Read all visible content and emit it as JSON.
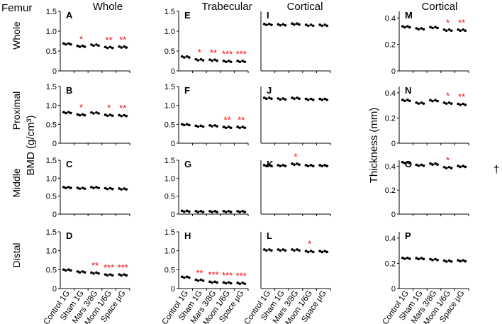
{
  "figure": {
    "bone_label": "Femur",
    "column_titles": [
      "Whole",
      "Trabecular",
      "Cortical",
      "Cortical"
    ],
    "row_labels": [
      "Whole",
      "Proximal",
      "Middle",
      "Distal"
    ],
    "y_axis_title_bmd": "BMD (g/cm³)",
    "y_axis_title_thickness": "Thickness (mm)",
    "dagger": "†",
    "colors": {
      "points": "#000000",
      "significance": "#ff0000",
      "axis": "#000000"
    }
  },
  "chart_data": {
    "type": "scatter",
    "categories": [
      "Control 1G",
      "Sham 1G",
      "Mars 3/8G",
      "Moon 1/6G",
      "Space µG"
    ],
    "bmd_axis": {
      "ylim": [
        0,
        1.5
      ],
      "ticks": [
        "0",
        "0.5",
        "1.0",
        "1.5"
      ],
      "tick_values": [
        0,
        0.5,
        1.0,
        1.5
      ]
    },
    "thickness_axis": {
      "ylim": [
        0,
        0.45
      ],
      "ticks": [
        "0",
        "0.2",
        "0.4"
      ],
      "tick_values": [
        0,
        0.2,
        0.4
      ]
    },
    "panels": [
      {
        "letter": "A",
        "group": "bmd",
        "means": [
          0.68,
          0.62,
          0.65,
          0.59,
          0.6
        ],
        "sig": [
          "",
          "*",
          "",
          "**",
          "**"
        ]
      },
      {
        "letter": "E",
        "group": "bmd",
        "means": [
          0.35,
          0.28,
          0.27,
          0.24,
          0.24
        ],
        "sig": [
          "",
          "*",
          "**",
          "***",
          "***"
        ]
      },
      {
        "letter": "I",
        "group": "bmd",
        "means": [
          1.17,
          1.16,
          1.18,
          1.15,
          1.15
        ],
        "sig": [
          "",
          "",
          "",
          "",
          ""
        ]
      },
      {
        "letter": "M",
        "group": "thk",
        "means": [
          0.333,
          0.318,
          0.328,
          0.308,
          0.308
        ],
        "sig": [
          "",
          "",
          "",
          "*",
          "**"
        ]
      },
      {
        "letter": "B",
        "group": "bmd",
        "means": [
          0.81,
          0.75,
          0.8,
          0.74,
          0.73
        ],
        "sig": [
          "",
          "*",
          "",
          "*",
          "**"
        ]
      },
      {
        "letter": "F",
        "group": "bmd",
        "means": [
          0.49,
          0.45,
          0.46,
          0.42,
          0.42
        ],
        "sig": [
          "",
          "",
          "",
          "**",
          "**"
        ]
      },
      {
        "letter": "J",
        "group": "bmd",
        "means": [
          1.19,
          1.17,
          1.19,
          1.16,
          1.16
        ],
        "sig": [
          "",
          "",
          "",
          "",
          ""
        ]
      },
      {
        "letter": "N",
        "group": "thk",
        "means": [
          0.34,
          0.318,
          0.338,
          0.318,
          0.308
        ],
        "sig": [
          "",
          "",
          "",
          "*",
          "**"
        ]
      },
      {
        "letter": "C",
        "group": "bmd",
        "means": [
          0.74,
          0.72,
          0.74,
          0.71,
          0.7
        ],
        "sig": [
          "",
          "",
          "",
          "",
          ""
        ]
      },
      {
        "letter": "G",
        "group": "bmd",
        "means": [
          0.08,
          0.07,
          0.07,
          0.07,
          0.07
        ],
        "sig": [
          "",
          "",
          "",
          "",
          ""
        ]
      },
      {
        "letter": "K",
        "group": "bmd",
        "means": [
          1.35,
          1.35,
          1.39,
          1.35,
          1.35
        ],
        "sig": [
          "",
          "",
          "*",
          "",
          ""
        ]
      },
      {
        "letter": "O",
        "group": "thk",
        "means": [
          0.43,
          0.408,
          0.418,
          0.388,
          0.398
        ],
        "sig": [
          "",
          "",
          "",
          "*",
          ""
        ]
      },
      {
        "letter": "D",
        "group": "bmd",
        "means": [
          0.49,
          0.44,
          0.41,
          0.36,
          0.36
        ],
        "sig": [
          "",
          "",
          "**",
          "***",
          "***"
        ]
      },
      {
        "letter": "H",
        "group": "bmd",
        "means": [
          0.3,
          0.22,
          0.17,
          0.15,
          0.14
        ],
        "sig": [
          "",
          "**",
          "***",
          "***",
          "***"
        ]
      },
      {
        "letter": "L",
        "group": "bmd",
        "means": [
          1.02,
          1.02,
          1.02,
          0.98,
          0.98
        ],
        "sig": [
          "",
          "",
          "",
          "*",
          ""
        ]
      },
      {
        "letter": "P",
        "group": "thk",
        "means": [
          0.24,
          0.238,
          0.23,
          0.218,
          0.22
        ],
        "sig": [
          "",
          "",
          "",
          "",
          ""
        ]
      }
    ]
  }
}
